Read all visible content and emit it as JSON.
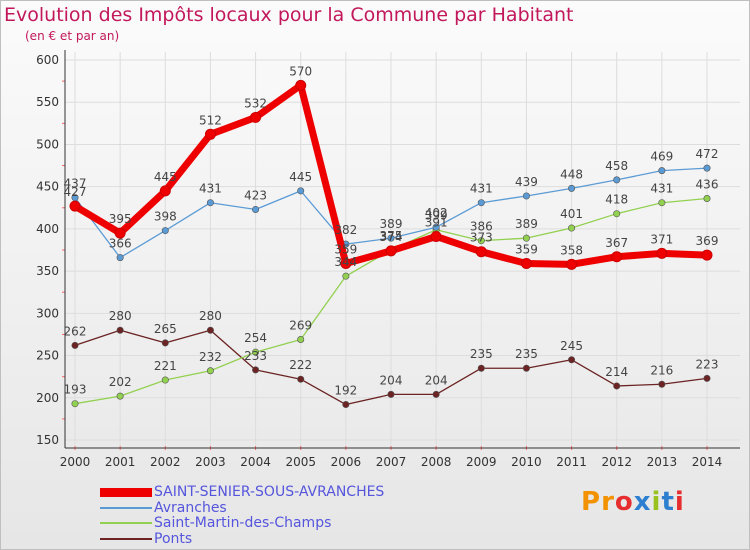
{
  "chart_data": {
    "type": "line",
    "title": "Evolution des Impôts locaux pour la Commune par Habitant",
    "subtitle": "(en € et par an)",
    "x": [
      "2000",
      "2001",
      "2002",
      "2003",
      "2004",
      "2005",
      "2006",
      "2007",
      "2008",
      "2009",
      "2010",
      "2011",
      "2012",
      "2013",
      "2014"
    ],
    "ylim": [
      150,
      600
    ],
    "yticks": [
      150,
      200,
      250,
      300,
      350,
      400,
      450,
      500,
      550,
      600
    ],
    "grid": true,
    "legend_position": "bottom-left",
    "series": [
      {
        "name": "SAINT-SENIER-SOUS-AVRANCHES",
        "color": "#ee0000",
        "values": [
          427,
          395,
          445,
          512,
          532,
          570,
          359,
          374,
          391,
          373,
          359,
          358,
          367,
          371,
          369
        ]
      },
      {
        "name": "Avranches",
        "color": "#5b9bd5",
        "values": [
          437,
          366,
          398,
          431,
          423,
          445,
          382,
          389,
          402,
          431,
          439,
          448,
          458,
          469,
          472
        ]
      },
      {
        "name": "Saint-Martin-des-Champs",
        "color": "#92d050",
        "values": [
          193,
          202,
          221,
          232,
          254,
          269,
          344,
          375,
          399,
          386,
          389,
          401,
          418,
          431,
          436
        ]
      },
      {
        "name": "Ponts",
        "color": "#6b2323",
        "values": [
          262,
          280,
          265,
          280,
          233,
          222,
          192,
          204,
          204,
          235,
          235,
          245,
          214,
          216,
          223
        ]
      }
    ]
  },
  "logo_text": "Proxiti",
  "logo_colors": [
    "#f39200",
    "#f39200",
    "#e62e2e",
    "#2f7fd0",
    "#99c21f",
    "#2f7fd0",
    "#e62e2e"
  ]
}
